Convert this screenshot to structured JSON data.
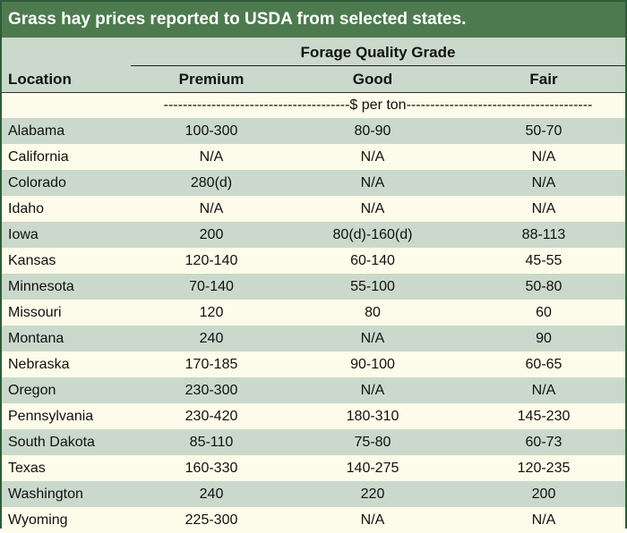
{
  "title": "Grass hay prices reported to USDA from selected states.",
  "header": {
    "group_label": "Forage Quality Grade",
    "location_label": "Location",
    "columns": [
      "Premium",
      "Good",
      "Fair"
    ]
  },
  "units": "---------------------------------------$ per ton---------------------------------------",
  "rows": [
    {
      "location": "Alabama",
      "premium": "100-300",
      "good": "80-90",
      "fair": "50-70"
    },
    {
      "location": "California",
      "premium": "N/A",
      "good": "N/A",
      "fair": "N/A"
    },
    {
      "location": "Colorado",
      "premium": "280(d)",
      "good": "N/A",
      "fair": "N/A"
    },
    {
      "location": "Idaho",
      "premium": "N/A",
      "good": "N/A",
      "fair": "N/A"
    },
    {
      "location": "Iowa",
      "premium": "200",
      "good": "80(d)-160(d)",
      "fair": "88-113"
    },
    {
      "location": "Kansas",
      "premium": "120-140",
      "good": "60-140",
      "fair": "45-55"
    },
    {
      "location": "Minnesota",
      "premium": "70-140",
      "good": "55-100",
      "fair": "50-80"
    },
    {
      "location": "Missouri",
      "premium": "120",
      "good": "80",
      "fair": "60"
    },
    {
      "location": "Montana",
      "premium": "240",
      "good": "N/A",
      "fair": "90"
    },
    {
      "location": "Nebraska",
      "premium": "170-185",
      "good": "90-100",
      "fair": "60-65"
    },
    {
      "location": "Oregon",
      "premium": "230-300",
      "good": "N/A",
      "fair": "N/A"
    },
    {
      "location": "Pennsylvania",
      "premium": "230-420",
      "good": "180-310",
      "fair": "145-230"
    },
    {
      "location": "South Dakota",
      "premium": "85-110",
      "good": "75-80",
      "fair": "60-73"
    },
    {
      "location": "Texas",
      "premium": "160-330",
      "good": "140-275",
      "fair": "120-235"
    },
    {
      "location": "Washington",
      "premium": "240",
      "good": "220",
      "fair": "200"
    },
    {
      "location": "Wyoming",
      "premium": "225-300",
      "good": "N/A",
      "fair": "N/A"
    }
  ],
  "colors": {
    "title_bg": "#4e7a4f",
    "band": "#cad9cb",
    "cream": "#fdfbe9",
    "border": "#2e5c37"
  }
}
